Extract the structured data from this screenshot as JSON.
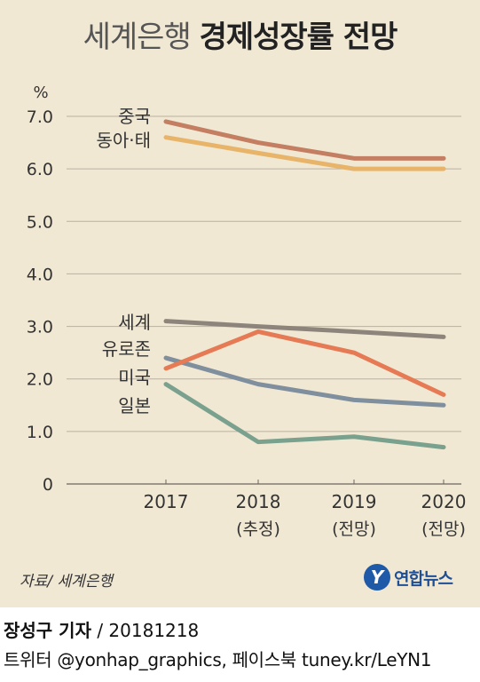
{
  "title": {
    "thin": "세계은행",
    "bold": "경제성장률 전망"
  },
  "source": "자료/ 세계은행",
  "logo": {
    "text": "연합뉴스"
  },
  "byline": {
    "author": "장성구 기자",
    "separator": " / ",
    "date": "20181218"
  },
  "social": "트위터 @yonhap_graphics, 페이스북 tuney.kr/LeYN1",
  "chart_data": {
    "type": "line",
    "ylabel": "%",
    "ylim": [
      0,
      7.0
    ],
    "yticks": [
      "0",
      "1.0",
      "2.0",
      "3.0",
      "4.0",
      "5.0",
      "6.0",
      "7.0"
    ],
    "categories": [
      {
        "year": "2017",
        "note": ""
      },
      {
        "year": "2018",
        "note": "(추정)"
      },
      {
        "year": "2019",
        "note": "(전망)"
      },
      {
        "year": "2020",
        "note": "(전망)"
      }
    ],
    "grid": true,
    "series": [
      {
        "name": "중국",
        "values": [
          6.9,
          6.5,
          6.2,
          6.2
        ],
        "color": "#c47e62"
      },
      {
        "name": "동아·태",
        "values": [
          6.6,
          6.3,
          6.0,
          6.0
        ],
        "color": "#e8b469"
      },
      {
        "name": "세계",
        "values": [
          3.1,
          3.0,
          2.9,
          2.8
        ],
        "color": "#8d857c"
      },
      {
        "name": "유로존",
        "values": [
          2.4,
          1.9,
          1.6,
          1.5
        ],
        "color": "#7f8f9e"
      },
      {
        "name": "미국",
        "values": [
          2.2,
          2.9,
          2.5,
          1.7
        ],
        "color": "#e57a55"
      },
      {
        "name": "일본",
        "values": [
          1.9,
          0.8,
          0.9,
          0.7
        ],
        "color": "#7aa18e"
      }
    ]
  }
}
